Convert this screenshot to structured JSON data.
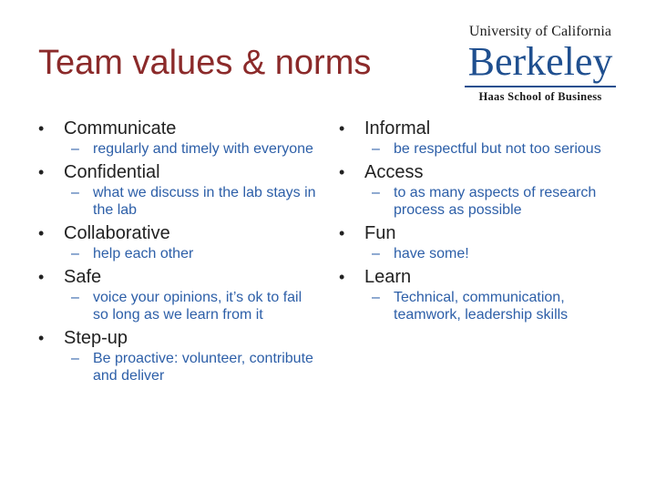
{
  "title": "Team values & norms",
  "logo": {
    "university": "University of California",
    "campus": "Berkeley",
    "school": "Haas School of Business"
  },
  "left_items": [
    {
      "head": "Communicate",
      "sub": "regularly and timely with everyone"
    },
    {
      "head": "Confidential",
      "sub": "what we discuss in the lab stays in the lab"
    },
    {
      "head": "Collaborative",
      "sub": "help each other"
    },
    {
      "head": "Safe",
      "sub": "voice your opinions, it’s ok to fail so long as we learn from it"
    },
    {
      "head": "Step-up",
      "sub": "Be proactive: volunteer, contribute and deliver"
    }
  ],
  "right_items": [
    {
      "head": "Informal",
      "sub": "be respectful but not too serious"
    },
    {
      "head": "Access",
      "sub": "to as many aspects of research process as possible"
    },
    {
      "head": "Fun",
      "sub": "have some!"
    },
    {
      "head": "Learn",
      "sub": "Technical, communication, teamwork, leadership skills"
    }
  ],
  "colors": {
    "title": "#8b2a2a",
    "sub_text": "#2d5fa8",
    "logo_blue": "#1f4f8f"
  }
}
